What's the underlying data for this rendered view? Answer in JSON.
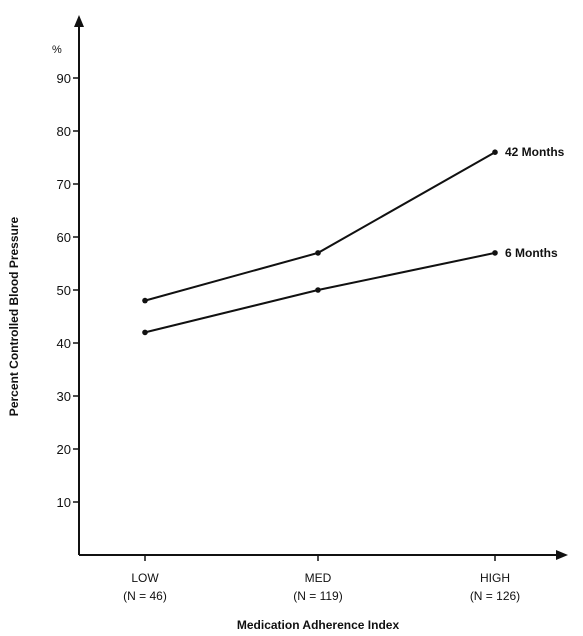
{
  "chart_data": {
    "type": "line",
    "title": "",
    "xlabel": "Medication Adherence Index",
    "ylabel": "Percent Controlled Blood Pressure",
    "y_unit_label": "%",
    "ylim": [
      0,
      100
    ],
    "y_ticks": [
      10,
      20,
      30,
      40,
      50,
      60,
      70,
      80,
      90
    ],
    "categories": [
      {
        "name": "LOW",
        "n": "(N = 46)"
      },
      {
        "name": "MED",
        "n": "(N = 119)"
      },
      {
        "name": "HIGH",
        "n": "(N = 126)"
      }
    ],
    "series": [
      {
        "name": "42 Months",
        "values": [
          48,
          57,
          76
        ]
      },
      {
        "name": "6 Months",
        "values": [
          42,
          50,
          57
        ]
      }
    ],
    "grid": false,
    "legend": "labels at line ends (right)",
    "colors": {
      "line": "#111111",
      "axis": "#111111"
    }
  }
}
